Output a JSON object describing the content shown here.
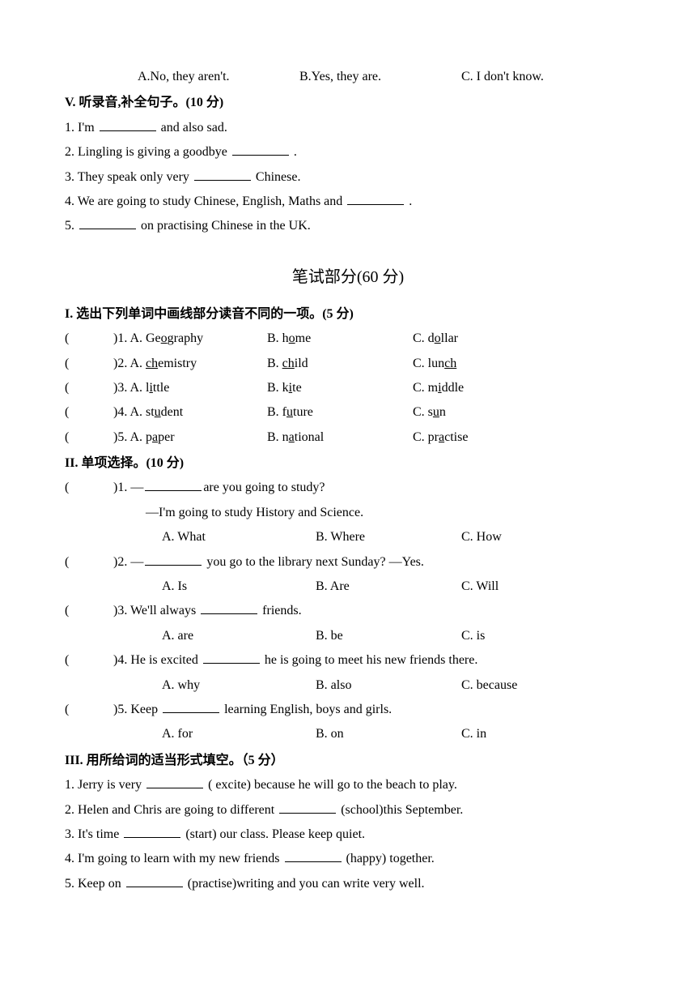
{
  "top_options": {
    "a": "A.No, they aren't.",
    "b": "B.Yes, they are.",
    "c": "C. I don't know."
  },
  "section_v": {
    "title": "V. 听录音,补全句子。(10 分)",
    "q1_pre": "1. I'm ",
    "q1_post": " and also sad.",
    "q2_pre": "2. Lingling is giving a goodbye ",
    "q2_post": " .",
    "q3_pre": "3. They speak only very ",
    "q3_post": " Chinese.",
    "q4_pre": "4. We are going to study Chinese, English, Maths and ",
    "q4_post": " .",
    "q5_pre": "5. ",
    "q5_post": " on practising Chinese in the UK."
  },
  "written_title": "笔试部分(60 分)",
  "section_i": {
    "title": "I. 选出下列单词中画线部分读音不同的一项。(5 分)",
    "rows": [
      {
        "num": ")1.",
        "a_pre": "A. Ge",
        "a_u": "o",
        "a_post": "graphy",
        "b_pre": "B. h",
        "b_u": "o",
        "b_post": "me",
        "c_pre": "C. d",
        "c_u": "o",
        "c_post": "llar"
      },
      {
        "num": ")2.",
        "a_pre": "A. ",
        "a_u": "ch",
        "a_post": "emistry",
        "b_pre": "B. ",
        "b_u": "ch",
        "b_post": "ild",
        "c_pre": "C. lun",
        "c_u": "ch",
        "c_post": ""
      },
      {
        "num": ")3.",
        "a_pre": "A. l",
        "a_u": "i",
        "a_post": "ttle",
        "b_pre": "B. k",
        "b_u": "i",
        "b_post": "te",
        "c_pre": "C. m",
        "c_u": "i",
        "c_post": "ddle"
      },
      {
        "num": ")4.",
        "a_pre": "A. st",
        "a_u": "u",
        "a_post": "dent",
        "b_pre": "B. f",
        "b_u": "u",
        "b_post": "ture",
        "c_pre": "C. s",
        "c_u": "u",
        "c_post": "n"
      },
      {
        "num": ")5.",
        "a_pre": "A. p",
        "a_u": "a",
        "a_post": "per",
        "b_pre": "B. n",
        "b_u": "a",
        "b_post": "tional",
        "c_pre": "C. pr",
        "c_u": "a",
        "c_post": "ctise"
      }
    ]
  },
  "section_ii": {
    "title": "II. 单项选择。(10 分)",
    "q1_line1a": ")1. —",
    "q1_line1b": "are you going to study?",
    "q1_line2": "—I'm going to study History and Science.",
    "q1_opts": {
      "a": "A. What",
      "b": "B. Where",
      "c": "C. How"
    },
    "q2_line1a": ")2. —",
    "q2_line1b": " you go to the library next Sunday?  —Yes.",
    "q2_opts": {
      "a": "A. Is",
      "b": "B. Are",
      "c": "C. Will"
    },
    "q3_line1a": ")3. We'll always ",
    "q3_line1b": " friends.",
    "q3_opts": {
      "a": "A. are",
      "b": "B. be",
      "c": "C. is"
    },
    "q4_line1a": ")4. He is excited ",
    "q4_line1b": " he is going to meet his new friends there.",
    "q4_opts": {
      "a": "A. why",
      "b": "B. also",
      "c": "C. because"
    },
    "q5_line1a": ")5. Keep ",
    "q5_line1b": " learning English, boys and girls.",
    "q5_opts": {
      "a": "A. for",
      "b": "B. on",
      "c": "C. in"
    }
  },
  "section_iii": {
    "title": "III. 用所给词的适当形式填空。（5 分）",
    "q1_pre": "1. Jerry is very ",
    "q1_post": " ( excite) because he will go to the beach to play.",
    "q2_pre": "2. Helen and Chris are going to different ",
    "q2_post": " (school)this September.",
    "q3_pre": "3. It's time ",
    "q3_post": " (start) our class. Please keep quiet.",
    "q4_pre": "4. I'm going to learn with my new friends ",
    "q4_post": " (happy) together.",
    "q5_pre": "5. Keep on ",
    "q5_post": " (practise)writing and you can write very well."
  },
  "paren_open": "("
}
